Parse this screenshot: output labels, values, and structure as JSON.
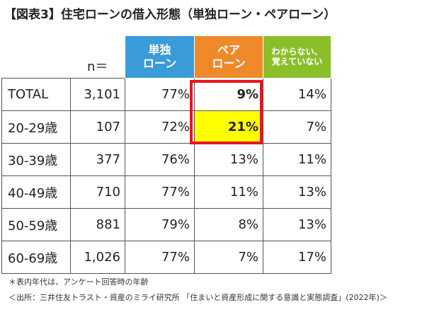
{
  "title": "【図表3】住宅ローンの借入形態（単独ローン・ペアローン）",
  "chart_data": {
    "type": "table",
    "title": "【図表3】住宅ローンの借入形態（単独ローン・ペアローン）",
    "n_header": "n＝",
    "columns": [
      {
        "line1": "単独",
        "line2": "ローン",
        "color": "#3a9bd8"
      },
      {
        "line1": "ペア",
        "line2": "ローン",
        "color": "#ef8a2a"
      },
      {
        "line1": "わからない、",
        "line2": "覚えていない",
        "color": "#8bbf2a"
      }
    ],
    "rows": [
      {
        "label": "TOTAL",
        "n": "3,101",
        "single": "77%",
        "pair": "9%",
        "unknown": "14%"
      },
      {
        "label": "20-29歳",
        "n": "107",
        "single": "72%",
        "pair": "21%",
        "unknown": "7%"
      },
      {
        "label": "30-39歳",
        "n": "377",
        "single": "76%",
        "pair": "13%",
        "unknown": "11%"
      },
      {
        "label": "40-49歳",
        "n": "710",
        "single": "77%",
        "pair": "11%",
        "unknown": "13%"
      },
      {
        "label": "50-59歳",
        "n": "881",
        "single": "79%",
        "pair": "8%",
        "unknown": "13%"
      },
      {
        "label": "60-69歳",
        "n": "1,026",
        "single": "77%",
        "pair": "7%",
        "unknown": "17%"
      }
    ],
    "highlight_color": "#ffff00",
    "box_color": "#e8141e"
  },
  "notes": {
    "note1": "＊表内年代は、アンケート回答時の年齢",
    "source": "＜出所：三井住友トラスト・資産のミライ研究所 「住まいと資産形成に関する意識と実態調査」(2022年)＞"
  }
}
